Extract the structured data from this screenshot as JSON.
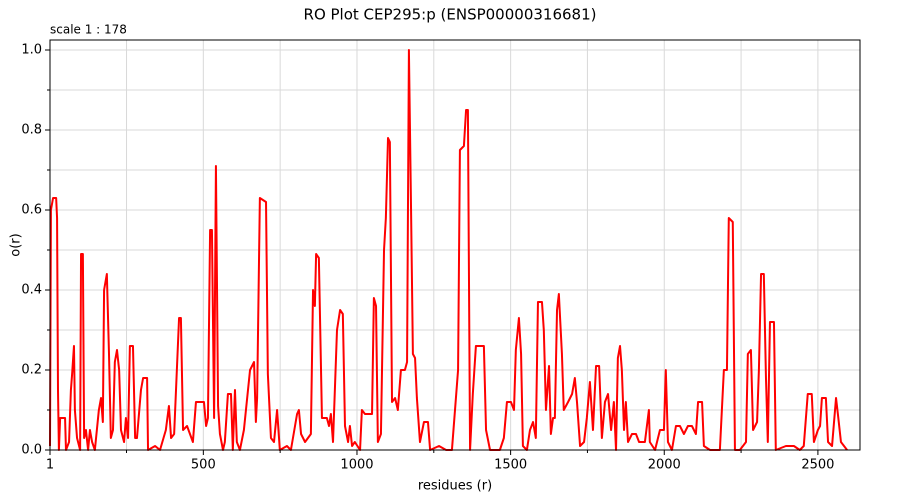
{
  "chart_data": {
    "type": "line",
    "title": "RO Plot CEP295:p (ENSP00000316681)",
    "subtitle": "scale 1 : 178",
    "xlabel": "residues (r)",
    "ylabel": "o(r)",
    "xlim": [
      1,
      2637
    ],
    "ylim": [
      0,
      1.025
    ],
    "xticks": [
      1,
      500,
      1000,
      1500,
      2000,
      2500
    ],
    "xminor": [
      250,
      750,
      1250,
      1750,
      2250
    ],
    "yticks": [
      {
        "value": 0,
        "label": "0.0"
      },
      0.2,
      0.4,
      0.6,
      0.8,
      {
        "value": 1,
        "label": "1.0"
      }
    ],
    "yminor": [
      0.1,
      0.3,
      0.5,
      0.7,
      0.9
    ],
    "grid": true,
    "series": [
      {
        "name": "o(r)",
        "color": "#ff0000",
        "x": [
          1,
          4,
          11,
          21,
          24,
          27,
          30,
          34,
          50,
          53,
          63,
          69,
          73,
          79,
          82,
          89,
          99,
          102,
          108,
          112,
          118,
          125,
          131,
          138,
          147,
          160,
          167,
          173,
          177,
          186,
          193,
          199,
          206,
          212,
          219,
          226,
          232,
          242,
          248,
          255,
          261,
          271,
          278,
          284,
          297,
          304,
          317,
          320,
          343,
          359,
          378,
          388,
          395,
          405,
          421,
          427,
          434,
          447,
          466,
          476,
          502,
          509,
          515,
          522,
          528,
          535,
          541,
          548,
          554,
          564,
          570,
          580,
          590,
          596,
          603,
          609,
          619,
          632,
          652,
          665,
          671,
          675,
          684,
          704,
          710,
          720,
          730,
          740,
          749,
          772,
          785,
          805,
          811,
          818,
          831,
          850,
          857,
          863,
          867,
          876,
          886,
          902,
          909,
          915,
          922,
          935,
          945,
          954,
          961,
          971,
          977,
          984,
          993,
          1010,
          1016,
          1026,
          1049,
          1055,
          1062,
          1068,
          1078,
          1088,
          1094,
          1101,
          1107,
          1114,
          1124,
          1133,
          1143,
          1156,
          1163,
          1169,
          1176,
          1182,
          1189,
          1195,
          1205,
          1218,
          1231,
          1238,
          1267,
          1290,
          1309,
          1329,
          1335,
          1348,
          1355,
          1361,
          1368,
          1377,
          1387,
          1413,
          1420,
          1433,
          1465,
          1478,
          1488,
          1501,
          1511,
          1517,
          1527,
          1534,
          1540,
          1553,
          1563,
          1573,
          1582,
          1589,
          1602,
          1608,
          1615,
          1625,
          1631,
          1638,
          1644,
          1651,
          1657,
          1667,
          1673,
          1687,
          1700,
          1709,
          1716,
          1726,
          1739,
          1748,
          1758,
          1768,
          1778,
          1788,
          1797,
          1807,
          1817,
          1827,
          1836,
          1843,
          1849,
          1856,
          1862,
          1869,
          1875,
          1882,
          1895,
          1908,
          1918,
          1937,
          1950,
          1953,
          1970,
          1986,
          1999,
          2005,
          2012,
          2025,
          2038,
          2051,
          2064,
          2077,
          2090,
          2103,
          2110,
          2123,
          2129,
          2149,
          2168,
          2181,
          2194,
          2204,
          2210,
          2223,
          2230,
          2246,
          2266,
          2272,
          2282,
          2289,
          2302,
          2308,
          2315,
          2324,
          2331,
          2337,
          2344,
          2357,
          2363,
          2396,
          2422,
          2441,
          2454,
          2467,
          2480,
          2487,
          2500,
          2507,
          2513,
          2526,
          2533,
          2546,
          2559,
          2565,
          2575,
          2585,
          2595
        ],
        "values": [
          0.01,
          0.6,
          0.63,
          0.63,
          0.58,
          0.15,
          0,
          0.08,
          0.08,
          0,
          0.02,
          0.15,
          0.19,
          0.26,
          0.1,
          0.03,
          0,
          0.49,
          0.49,
          0.03,
          0.05,
          0,
          0.05,
          0.02,
          0,
          0.1,
          0.13,
          0.07,
          0.4,
          0.44,
          0.24,
          0.03,
          0.05,
          0.22,
          0.25,
          0.2,
          0.05,
          0.02,
          0.08,
          0.03,
          0.26,
          0.26,
          0.03,
          0.03,
          0.15,
          0.18,
          0.18,
          0,
          0.01,
          0,
          0.05,
          0.11,
          0.03,
          0.04,
          0.33,
          0.33,
          0.05,
          0.06,
          0.02,
          0.12,
          0.12,
          0.06,
          0.08,
          0.55,
          0.55,
          0.08,
          0.71,
          0.11,
          0.04,
          0,
          0.02,
          0.14,
          0.14,
          0,
          0.15,
          0.02,
          0,
          0.05,
          0.2,
          0.22,
          0.07,
          0.13,
          0.63,
          0.62,
          0.19,
          0.03,
          0.02,
          0.1,
          0,
          0.01,
          0,
          0.09,
          0.1,
          0.04,
          0.02,
          0.04,
          0.4,
          0.36,
          0.49,
          0.48,
          0.08,
          0.08,
          0.06,
          0.09,
          0.02,
          0.3,
          0.35,
          0.34,
          0.06,
          0.02,
          0.06,
          0.01,
          0.02,
          0,
          0.1,
          0.09,
          0.09,
          0.38,
          0.36,
          0.02,
          0.04,
          0.5,
          0.58,
          0.78,
          0.77,
          0.12,
          0.13,
          0.1,
          0.2,
          0.2,
          0.22,
          1.0,
          0.6,
          0.24,
          0.23,
          0.13,
          0.02,
          0.07,
          0.07,
          0,
          0.01,
          0,
          0,
          0.2,
          0.75,
          0.76,
          0.85,
          0.85,
          0,
          0.14,
          0.26,
          0.26,
          0.05,
          0,
          0,
          0.03,
          0.12,
          0.12,
          0.1,
          0.25,
          0.33,
          0.24,
          0.01,
          0,
          0.05,
          0.07,
          0.03,
          0.37,
          0.37,
          0.3,
          0.1,
          0.21,
          0.04,
          0.08,
          0.08,
          0.35,
          0.39,
          0.24,
          0.1,
          0.12,
          0.14,
          0.18,
          0.12,
          0.01,
          0.02,
          0.08,
          0.17,
          0.05,
          0.21,
          0.21,
          0.03,
          0.12,
          0.14,
          0.05,
          0.12,
          0,
          0.23,
          0.26,
          0.2,
          0.05,
          0.12,
          0.02,
          0.04,
          0.04,
          0.02,
          0.02,
          0.1,
          0.02,
          0,
          0.05,
          0.05,
          0.2,
          0.02,
          0,
          0.06,
          0.06,
          0.04,
          0.06,
          0.06,
          0.04,
          0.12,
          0.12,
          0.01,
          0,
          0,
          0,
          0.2,
          0.2,
          0.58,
          0.57,
          0,
          0,
          0.02,
          0.24,
          0.25,
          0.05,
          0.07,
          0.2,
          0.44,
          0.44,
          0.18,
          0.02,
          0.32,
          0.32,
          0,
          0.01,
          0.01,
          0,
          0.01,
          0.14,
          0.14,
          0.02,
          0.05,
          0.06,
          0.13,
          0.13,
          0.02,
          0.01,
          0.13,
          0.09,
          0.02,
          0.01,
          0
        ]
      }
    ]
  }
}
